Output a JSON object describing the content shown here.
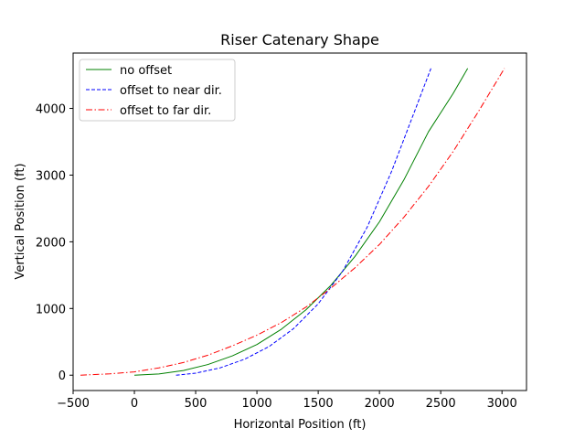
{
  "chart_data": {
    "type": "line",
    "title": "Riser Catenary Shape",
    "xlabel": "Horizontal Position (ft)",
    "ylabel": "Vertical Position (ft)",
    "xlim": [
      -500,
      3200
    ],
    "ylim": [
      -230,
      4830
    ],
    "xticks": [
      -500,
      0,
      500,
      1000,
      1500,
      2000,
      2500,
      3000
    ],
    "yticks": [
      0,
      1000,
      2000,
      3000,
      4000
    ],
    "xtick_labels": [
      "−500",
      "0",
      "500",
      "1000",
      "1500",
      "2000",
      "2500",
      "3000"
    ],
    "ytick_labels": [
      "0",
      "1000",
      "2000",
      "3000",
      "4000"
    ],
    "grid": false,
    "legend_position": "top-left",
    "series": [
      {
        "name": "no offset",
        "color": "#008000",
        "style": "solid",
        "x": [
          0,
          200,
          400,
          600,
          800,
          1000,
          1200,
          1400,
          1600,
          1800,
          2000,
          2200,
          2400,
          2600,
          2720
        ],
        "y": [
          0,
          18,
          70,
          160,
          290,
          460,
          690,
          980,
          1340,
          1780,
          2300,
          2930,
          3650,
          4220,
          4600
        ]
      },
      {
        "name": "offset to near dir.",
        "color": "#0000ff",
        "style": "dashed",
        "x": [
          340,
          500,
          700,
          900,
          1100,
          1300,
          1500,
          1700,
          1900,
          2100,
          2300,
          2420
        ],
        "y": [
          0,
          30,
          110,
          240,
          430,
          700,
          1070,
          1560,
          2220,
          3060,
          4020,
          4600
        ]
      },
      {
        "name": "offset to far dir.",
        "color": "#ff0000",
        "style": "dashdot",
        "x": [
          -440,
          -200,
          0,
          200,
          400,
          600,
          800,
          1000,
          1200,
          1400,
          1600,
          1800,
          2000,
          2200,
          2400,
          2600,
          2800,
          3020
        ],
        "y": [
          0,
          20,
          50,
          110,
          190,
          300,
          440,
          600,
          790,
          1020,
          1300,
          1610,
          1960,
          2370,
          2830,
          3350,
          3930,
          4600
        ]
      }
    ]
  }
}
